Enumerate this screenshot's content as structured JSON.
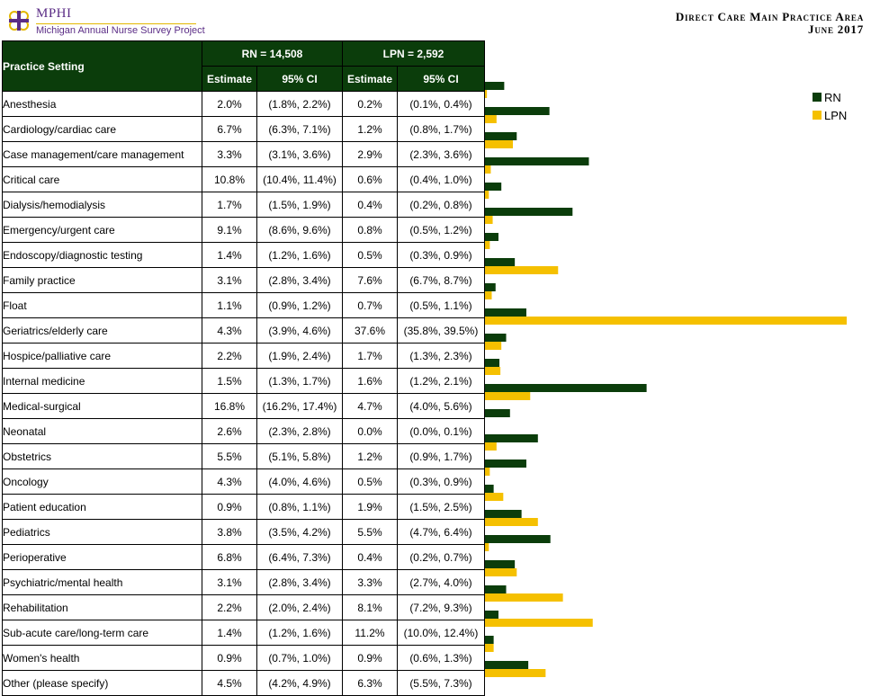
{
  "header": {
    "logo_title": "MPHI",
    "logo_subtitle": "Michigan Annual Nurse Survey Project",
    "title_line1": "Direct Care Main Practice Area",
    "title_line2": "June 2017"
  },
  "table": {
    "setting_header": "Practice Setting",
    "rn_header": "RN = 14,508",
    "lpn_header": "LPN = 2,592",
    "estimate_header": "Estimate",
    "ci_header": "95% CI",
    "rows": [
      {
        "setting": "Anesthesia",
        "rn_est": "2.0%",
        "rn_ci": "(1.8%, 2.2%)",
        "lpn_est": "0.2%",
        "lpn_ci": "(0.1%, 0.4%)"
      },
      {
        "setting": "Cardiology/cardiac care",
        "rn_est": "6.7%",
        "rn_ci": "(6.3%, 7.1%)",
        "lpn_est": "1.2%",
        "lpn_ci": "(0.8%, 1.7%)"
      },
      {
        "setting": "Case management/care management",
        "rn_est": "3.3%",
        "rn_ci": "(3.1%, 3.6%)",
        "lpn_est": "2.9%",
        "lpn_ci": "(2.3%, 3.6%)"
      },
      {
        "setting": "Critical care",
        "rn_est": "10.8%",
        "rn_ci": "(10.4%, 11.4%)",
        "lpn_est": "0.6%",
        "lpn_ci": "(0.4%, 1.0%)"
      },
      {
        "setting": "Dialysis/hemodialysis",
        "rn_est": "1.7%",
        "rn_ci": "(1.5%, 1.9%)",
        "lpn_est": "0.4%",
        "lpn_ci": "(0.2%, 0.8%)"
      },
      {
        "setting": "Emergency/urgent care",
        "rn_est": "9.1%",
        "rn_ci": "(8.6%, 9.6%)",
        "lpn_est": "0.8%",
        "lpn_ci": "(0.5%, 1.2%)"
      },
      {
        "setting": "Endoscopy/diagnostic testing",
        "rn_est": "1.4%",
        "rn_ci": "(1.2%, 1.6%)",
        "lpn_est": "0.5%",
        "lpn_ci": "(0.3%, 0.9%)"
      },
      {
        "setting": "Family practice",
        "rn_est": "3.1%",
        "rn_ci": "(2.8%, 3.4%)",
        "lpn_est": "7.6%",
        "lpn_ci": "(6.7%, 8.7%)"
      },
      {
        "setting": "Float",
        "rn_est": "1.1%",
        "rn_ci": "(0.9%, 1.2%)",
        "lpn_est": "0.7%",
        "lpn_ci": "(0.5%, 1.1%)"
      },
      {
        "setting": "Geriatrics/elderly care",
        "rn_est": "4.3%",
        "rn_ci": "(3.9%, 4.6%)",
        "lpn_est": "37.6%",
        "lpn_ci": "(35.8%, 39.5%)"
      },
      {
        "setting": "Hospice/palliative care",
        "rn_est": "2.2%",
        "rn_ci": "(1.9%, 2.4%)",
        "lpn_est": "1.7%",
        "lpn_ci": "(1.3%, 2.3%)"
      },
      {
        "setting": "Internal medicine",
        "rn_est": "1.5%",
        "rn_ci": "(1.3%, 1.7%)",
        "lpn_est": "1.6%",
        "lpn_ci": "(1.2%, 2.1%)"
      },
      {
        "setting": "Medical-surgical",
        "rn_est": "16.8%",
        "rn_ci": "(16.2%, 17.4%)",
        "lpn_est": "4.7%",
        "lpn_ci": "(4.0%, 5.6%)"
      },
      {
        "setting": "Neonatal",
        "rn_est": "2.6%",
        "rn_ci": "(2.3%, 2.8%)",
        "lpn_est": "0.0%",
        "lpn_ci": "(0.0%, 0.1%)"
      },
      {
        "setting": "Obstetrics",
        "rn_est": "5.5%",
        "rn_ci": "(5.1%, 5.8%)",
        "lpn_est": "1.2%",
        "lpn_ci": "(0.9%, 1.7%)"
      },
      {
        "setting": "Oncology",
        "rn_est": "4.3%",
        "rn_ci": "(4.0%, 4.6%)",
        "lpn_est": "0.5%",
        "lpn_ci": "(0.3%, 0.9%)"
      },
      {
        "setting": "Patient education",
        "rn_est": "0.9%",
        "rn_ci": "(0.8%, 1.1%)",
        "lpn_est": "1.9%",
        "lpn_ci": "(1.5%, 2.5%)"
      },
      {
        "setting": "Pediatrics",
        "rn_est": "3.8%",
        "rn_ci": "(3.5%, 4.2%)",
        "lpn_est": "5.5%",
        "lpn_ci": "(4.7%, 6.4%)"
      },
      {
        "setting": "Perioperative",
        "rn_est": "6.8%",
        "rn_ci": "(6.4%, 7.3%)",
        "lpn_est": "0.4%",
        "lpn_ci": "(0.2%, 0.7%)"
      },
      {
        "setting": "Psychiatric/mental health",
        "rn_est": "3.1%",
        "rn_ci": "(2.8%, 3.4%)",
        "lpn_est": "3.3%",
        "lpn_ci": "(2.7%, 4.0%)"
      },
      {
        "setting": "Rehabilitation",
        "rn_est": "2.2%",
        "rn_ci": "(2.0%, 2.4%)",
        "lpn_est": "8.1%",
        "lpn_ci": "(7.2%, 9.3%)"
      },
      {
        "setting": "Sub-acute care/long-term care",
        "rn_est": "1.4%",
        "rn_ci": "(1.2%, 1.6%)",
        "lpn_est": "11.2%",
        "lpn_ci": "(10.0%, 12.4%)"
      },
      {
        "setting": "Women's health",
        "rn_est": "0.9%",
        "rn_ci": "(0.7%, 1.0%)",
        "lpn_est": "0.9%",
        "lpn_ci": "(0.6%, 1.3%)"
      },
      {
        "setting": "Other (please specify)",
        "rn_est": "4.5%",
        "rn_ci": "(4.2%, 4.9%)",
        "lpn_est": "6.3%",
        "lpn_ci": "(5.5%, 7.3%)"
      }
    ]
  },
  "chart_data": {
    "type": "bar",
    "orientation": "horizontal",
    "categories": [
      "Anesthesia",
      "Cardiology/cardiac care",
      "Case management/care management",
      "Critical care",
      "Dialysis/hemodialysis",
      "Emergency/urgent care",
      "Endoscopy/diagnostic testing",
      "Family practice",
      "Float",
      "Geriatrics/elderly care",
      "Hospice/palliative care",
      "Internal medicine",
      "Medical-surgical",
      "Neonatal",
      "Obstetrics",
      "Oncology",
      "Patient education",
      "Pediatrics",
      "Perioperative",
      "Psychiatric/mental health",
      "Rehabilitation",
      "Sub-acute care/long-term care",
      "Women's health",
      "Other (please specify)"
    ],
    "series": [
      {
        "name": "RN",
        "color": "#0b3d0b",
        "values": [
          2.0,
          6.7,
          3.3,
          10.8,
          1.7,
          9.1,
          1.4,
          3.1,
          1.1,
          4.3,
          2.2,
          1.5,
          16.8,
          2.6,
          5.5,
          4.3,
          0.9,
          3.8,
          6.8,
          3.1,
          2.2,
          1.4,
          0.9,
          4.5
        ]
      },
      {
        "name": "LPN",
        "color": "#f5c000",
        "values": [
          0.2,
          1.2,
          2.9,
          0.6,
          0.4,
          0.8,
          0.5,
          7.6,
          0.7,
          37.6,
          1.7,
          1.6,
          4.7,
          0.0,
          1.2,
          0.5,
          1.9,
          5.5,
          0.4,
          3.3,
          8.1,
          11.2,
          0.9,
          6.3
        ]
      }
    ],
    "xlim": [
      0,
      37.6
    ],
    "legend_position": "top-right",
    "grid": false
  }
}
